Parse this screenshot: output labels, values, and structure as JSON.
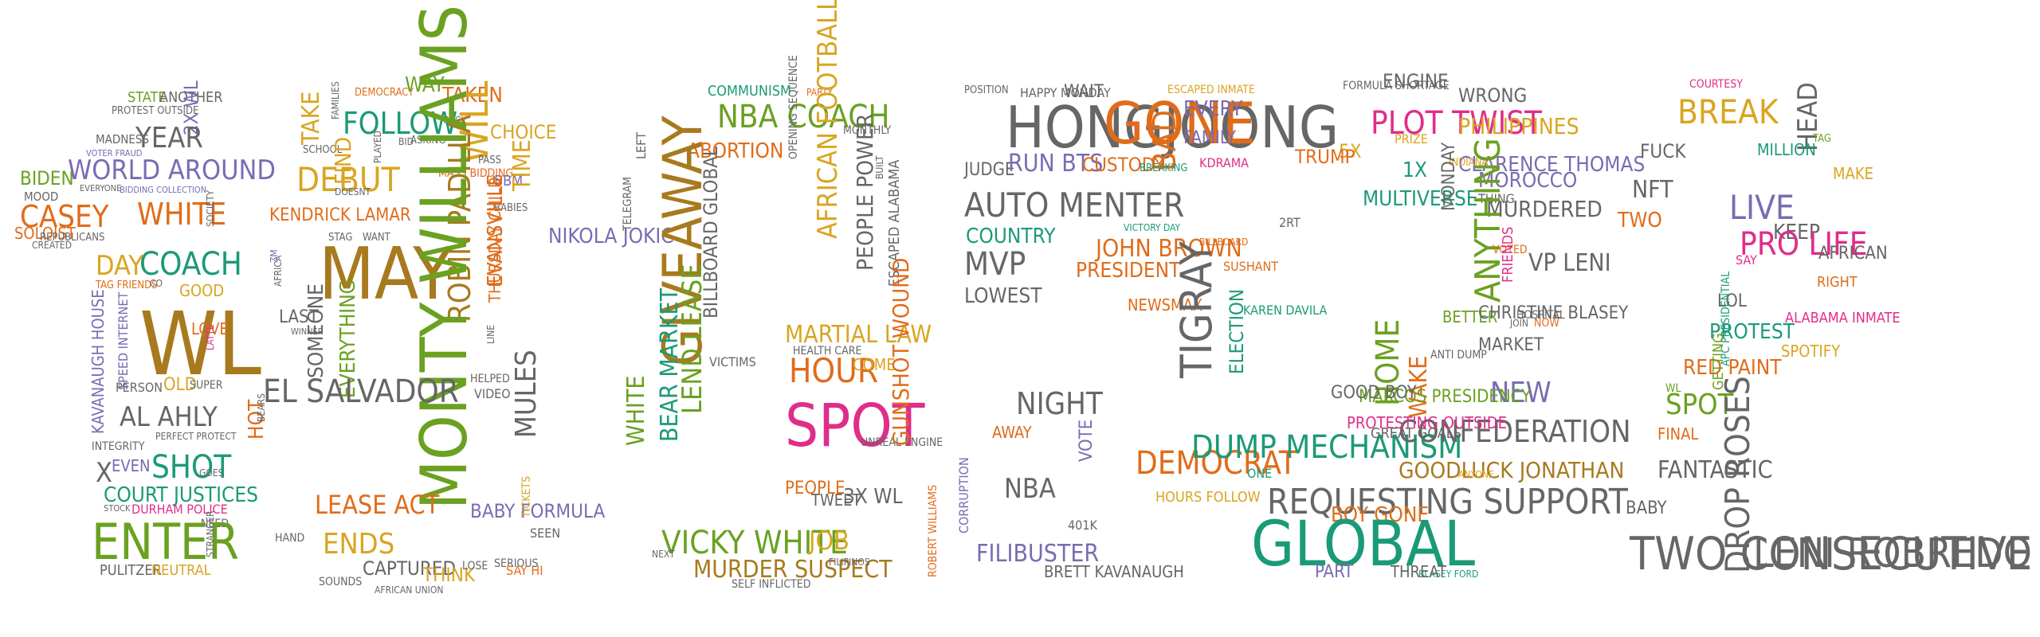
{
  "palette": {
    "green": "#6aa121",
    "orange": "#e06c1a",
    "purple": "#7a6bb3",
    "gold": "#d9a521",
    "teal": "#1b9a77",
    "gray": "#666666",
    "pink": "#e02d8a",
    "brown": "#a87a1e"
  },
  "words": [
    {
      "text": "STATE",
      "color": "#6aa121"
    },
    {
      "text": "ANOTHER",
      "color": "#666666"
    },
    {
      "text": "PROTEST OUTSIDE",
      "color": "#666666"
    },
    {
      "text": "2X WL",
      "color": "#7a6bb3"
    },
    {
      "text": "MADNESS",
      "color": "#666666"
    },
    {
      "text": "YEAR",
      "color": "#666666"
    },
    {
      "text": "VOTER FRAUD",
      "color": "#7a6bb3"
    },
    {
      "text": "WORLD AROUND",
      "color": "#7a6bb3"
    },
    {
      "text": "BIDEN",
      "color": "#6aa121"
    },
    {
      "text": "EVERYONE",
      "color": "#666666"
    },
    {
      "text": "BIDDING COLLECTION",
      "color": "#7a6bb3"
    },
    {
      "text": "MOOD",
      "color": "#666666"
    },
    {
      "text": "CASEY",
      "color": "#e06c1a"
    },
    {
      "text": "WHITE",
      "color": "#e06c1a"
    },
    {
      "text": "SOLOIST",
      "color": "#e06c1a"
    },
    {
      "text": "CREATED",
      "color": "#666666"
    },
    {
      "text": "REPUBLICANS",
      "color": "#666666"
    },
    {
      "text": "SOCIETY",
      "color": "#666666"
    },
    {
      "text": "COACH",
      "color": "#1b9a77"
    },
    {
      "text": "DAY",
      "color": "#d9a521"
    },
    {
      "text": "TAG FRIENDS",
      "color": "#e06c1a"
    },
    {
      "text": "CO",
      "color": "#666666"
    },
    {
      "text": "GOOD",
      "color": "#d9a521"
    },
    {
      "text": "WL",
      "color": "#a87a1e"
    },
    {
      "text": "KAVANAUGH HOUSE",
      "color": "#7a6bb3"
    },
    {
      "text": "SPEED INTERNET",
      "color": "#7a6bb3"
    },
    {
      "text": "LOVE",
      "color": "#e06c1a"
    },
    {
      "text": "LATTE",
      "color": "#e02d8a"
    },
    {
      "text": "PERSON",
      "color": "#666666"
    },
    {
      "text": "OLD",
      "color": "#d9a521"
    },
    {
      "text": "SUPER",
      "color": "#666666"
    },
    {
      "text": "AL AHLY",
      "color": "#666666"
    },
    {
      "text": "PERFECT PROTECT",
      "color": "#666666"
    },
    {
      "text": "INTEGRITY",
      "color": "#666666"
    },
    {
      "text": "X",
      "color": "#666666"
    },
    {
      "text": "EVEN",
      "color": "#7a6bb3"
    },
    {
      "text": "SHOT",
      "color": "#1b9a77"
    },
    {
      "text": "GOES",
      "color": "#666666"
    },
    {
      "text": "COURT JUSTICES",
      "color": "#1b9a77"
    },
    {
      "text": "STOCK",
      "color": "#666666"
    },
    {
      "text": "DURHAM POLICE",
      "color": "#e02d8a"
    },
    {
      "text": "NEED",
      "color": "#666666"
    },
    {
      "text": "ENTER",
      "color": "#6aa121"
    },
    {
      "text": "STRANGER",
      "color": "#666666"
    },
    {
      "text": "PULITZER",
      "color": "#666666"
    },
    {
      "text": "NEUTRAL",
      "color": "#d9a521"
    },
    {
      "text": "DEMOCRACY",
      "color": "#e06c1a"
    },
    {
      "text": "WAY",
      "color": "#6aa121"
    },
    {
      "text": "TAKEN",
      "color": "#e06c1a"
    },
    {
      "text": "TAKE",
      "color": "#d9a521"
    },
    {
      "text": "FAMILIES",
      "color": "#666666"
    },
    {
      "text": "FOLLOW",
      "color": "#1b9a77"
    },
    {
      "text": "TRACK",
      "color": "#666666"
    },
    {
      "text": "ASKING",
      "color": "#666666"
    },
    {
      "text": "WILL",
      "color": "#d9a521"
    },
    {
      "text": "BID",
      "color": "#666666"
    },
    {
      "text": "CHOICE",
      "color": "#d9a521"
    },
    {
      "text": "SCHOOL",
      "color": "#666666"
    },
    {
      "text": "FIND",
      "color": "#d9a521"
    },
    {
      "text": "PLAYED",
      "color": "#666666"
    },
    {
      "text": "MASS BIDDING",
      "color": "#e06c1a"
    },
    {
      "text": "PASS",
      "color": "#666666"
    },
    {
      "text": "BBM",
      "color": "#7a6bb3"
    },
    {
      "text": "TIME",
      "color": "#d9a521"
    },
    {
      "text": "DEBUT",
      "color": "#d9a521"
    },
    {
      "text": "DOESNT",
      "color": "#666666"
    },
    {
      "text": "BABIES",
      "color": "#666666"
    },
    {
      "text": "KENDRICK LAMAR",
      "color": "#e06c1a"
    },
    {
      "text": "MAY",
      "color": "#a87a1e"
    },
    {
      "text": "STAG",
      "color": "#666666"
    },
    {
      "text": "WANT",
      "color": "#666666"
    },
    {
      "text": "ROBIN PADILLA",
      "color": "#a87a1e"
    },
    {
      "text": "EVANSVILLE",
      "color": "#e06c1a"
    },
    {
      "text": "THURSDAY CHILD",
      "color": "#e06c1a"
    },
    {
      "text": "NIKOLA JOKIC",
      "color": "#7a6bb3"
    },
    {
      "text": "ZM",
      "color": "#7a6bb3"
    },
    {
      "text": "AFRICA",
      "color": "#666666"
    },
    {
      "text": "LAST",
      "color": "#666666"
    },
    {
      "text": "WINNER",
      "color": "#666666"
    },
    {
      "text": "SOMEONE",
      "color": "#666666"
    },
    {
      "text": "EVERYTHING",
      "color": "#6aa121"
    },
    {
      "text": "MONTY WILLIAMS",
      "color": "#6aa121"
    },
    {
      "text": "MULES",
      "color": "#666666"
    },
    {
      "text": "EL SALVADOR",
      "color": "#666666"
    },
    {
      "text": "HOT",
      "color": "#e06c1a"
    },
    {
      "text": "LEASE ACT",
      "color": "#e06c1a"
    },
    {
      "text": "ENDS",
      "color": "#d9a521"
    },
    {
      "text": "BABY FORMULA",
      "color": "#7a6bb3"
    },
    {
      "text": "TICKETS",
      "color": "#d9a521"
    },
    {
      "text": "SEEN",
      "color": "#666666"
    },
    {
      "text": "CAPTURED",
      "color": "#666666"
    },
    {
      "text": "THINK",
      "color": "#d9a521"
    },
    {
      "text": "LOSE",
      "color": "#666666"
    },
    {
      "text": "SERIOUS",
      "color": "#666666"
    },
    {
      "text": "SAY HI",
      "color": "#e06c1a"
    },
    {
      "text": "SOUNDS",
      "color": "#666666"
    },
    {
      "text": "AFRICAN UNION",
      "color": "#666666"
    },
    {
      "text": "VIDEO",
      "color": "#666666"
    },
    {
      "text": "HELPED",
      "color": "#666666"
    },
    {
      "text": "HAND",
      "color": "#666666"
    },
    {
      "text": "BEARS",
      "color": "#666666"
    },
    {
      "text": "LINE",
      "color": "#666666"
    },
    {
      "text": "COMMUNISM",
      "color": "#1b9a77"
    },
    {
      "text": "PARTY",
      "color": "#e06c1a"
    },
    {
      "text": "NBA COACH",
      "color": "#6aa121"
    },
    {
      "text": "ABORTION",
      "color": "#e06c1a"
    },
    {
      "text": "OPENING SEQUENCE",
      "color": "#666666"
    },
    {
      "text": "MONTHLY",
      "color": "#666666"
    },
    {
      "text": "BUILT",
      "color": "#666666"
    },
    {
      "text": "AFRICAN FOOTBALL",
      "color": "#d9a521"
    },
    {
      "text": "PEOPLE POWER",
      "color": "#666666"
    },
    {
      "text": "ESCAPED ALABAMA",
      "color": "#666666"
    },
    {
      "text": "GIVEAWAY",
      "color": "#a87a1e"
    },
    {
      "text": "BILLBOARD GLOBAL",
      "color": "#666666"
    },
    {
      "text": "TELEGRAM",
      "color": "#666666"
    },
    {
      "text": "LEFT",
      "color": "#666666"
    },
    {
      "text": "MARTIAL LAW",
      "color": "#d9a521"
    },
    {
      "text": "HEALTH CARE",
      "color": "#666666"
    },
    {
      "text": "HOUR",
      "color": "#e06c1a"
    },
    {
      "text": "COME",
      "color": "#d9a521"
    },
    {
      "text": "SPOT",
      "color": "#e02d8a"
    },
    {
      "text": "UNREAL ENGINE",
      "color": "#666666"
    },
    {
      "text": "PEOPLE",
      "color": "#e06c1a"
    },
    {
      "text": "TWEET",
      "color": "#666666"
    },
    {
      "text": "3X WL",
      "color": "#666666"
    },
    {
      "text": "WHITE",
      "color": "#6aa121"
    },
    {
      "text": "LEND LEASE",
      "color": "#6aa121"
    },
    {
      "text": "BEAR MARKET",
      "color": "#1b9a77"
    },
    {
      "text": "VICTIMS",
      "color": "#666666"
    },
    {
      "text": "VICKY WHITE",
      "color": "#6aa121"
    },
    {
      "text": "JOB",
      "color": "#d9a521"
    },
    {
      "text": "MURDER SUSPECT",
      "color": "#a87a1e"
    },
    {
      "text": "SELF INFLICTED",
      "color": "#666666"
    },
    {
      "text": "FILIPINOS",
      "color": "#666666"
    },
    {
      "text": "GUNSHOT WOUND",
      "color": "#e06c1a"
    },
    {
      "text": "NEXT",
      "color": "#666666"
    },
    {
      "text": "POSITION",
      "color": "#666666"
    },
    {
      "text": "HAPPY MONDAY",
      "color": "#666666"
    },
    {
      "text": "WAIT",
      "color": "#666666"
    },
    {
      "text": "ESCAPED INMATE",
      "color": "#d9a521"
    },
    {
      "text": "HONGJOONG",
      "color": "#666666"
    },
    {
      "text": "GONE",
      "color": "#e06c1a"
    },
    {
      "text": "BAD",
      "color": "#e06c1a"
    },
    {
      "text": "EVERY",
      "color": "#7a6bb3"
    },
    {
      "text": "FAMILY",
      "color": "#7a6bb3"
    },
    {
      "text": "KDRAMA",
      "color": "#e02d8a"
    },
    {
      "text": "JUDGE",
      "color": "#666666"
    },
    {
      "text": "RUN BTS",
      "color": "#7a6bb3"
    },
    {
      "text": "CUSTODY",
      "color": "#e06c1a"
    },
    {
      "text": "BREAKING",
      "color": "#1b9a77"
    },
    {
      "text": "AUTO MENTER",
      "color": "#666666"
    },
    {
      "text": "COUNTRY",
      "color": "#1b9a77"
    },
    {
      "text": "JOHN BROWN",
      "color": "#e06c1a"
    },
    {
      "text": "VICTORY DAY",
      "color": "#1b9a77"
    },
    {
      "text": "BILLBOARD",
      "color": "#e06c1a"
    },
    {
      "text": "MVP",
      "color": "#666666"
    },
    {
      "text": "PRESIDENT",
      "color": "#e06c1a"
    },
    {
      "text": "SUSHANT",
      "color": "#e06c1a"
    },
    {
      "text": "LOWEST",
      "color": "#666666"
    },
    {
      "text": "NEWSMAX",
      "color": "#e06c1a"
    },
    {
      "text": "TIGRAY",
      "color": "#666666"
    },
    {
      "text": "ELECTION",
      "color": "#1b9a77"
    },
    {
      "text": "KAREN DAVILA",
      "color": "#1b9a77"
    },
    {
      "text": "NIGHT",
      "color": "#666666"
    },
    {
      "text": "AWAY",
      "color": "#e06c1a"
    },
    {
      "text": "DEMOCRAT",
      "color": "#e06c1a"
    },
    {
      "text": "DUMP MECHANISM",
      "color": "#1b9a77"
    },
    {
      "text": "ONE",
      "color": "#1b9a77"
    },
    {
      "text": "NBA",
      "color": "#666666"
    },
    {
      "text": "VOTE",
      "color": "#7a6bb3"
    },
    {
      "text": "HOURS FOLLOW",
      "color": "#d9a521"
    },
    {
      "text": "CORRUPTION",
      "color": "#7a6bb3"
    },
    {
      "text": "401K",
      "color": "#666666"
    },
    {
      "text": "FILIBUSTER",
      "color": "#7a6bb3"
    },
    {
      "text": "BRETT KAVANAUGH",
      "color": "#666666"
    },
    {
      "text": "ROBERT WILLIAMS",
      "color": "#e06c1a"
    },
    {
      "text": "FORMULA SHORTAGE",
      "color": "#666666"
    },
    {
      "text": "ENGINE",
      "color": "#666666"
    },
    {
      "text": "WRONG",
      "color": "#666666"
    },
    {
      "text": "PLOT TWIST",
      "color": "#e02d8a"
    },
    {
      "text": "PHILIPPINES",
      "color": "#d9a521"
    },
    {
      "text": "5X",
      "color": "#d9a521"
    },
    {
      "text": "PRIZE",
      "color": "#d9a521"
    },
    {
      "text": "CLARENCE THOMAS",
      "color": "#7a6bb3"
    },
    {
      "text": "TRUMP",
      "color": "#e06c1a"
    },
    {
      "text": "1X",
      "color": "#1b9a77"
    },
    {
      "text": "INDIANA",
      "color": "#d9a521"
    },
    {
      "text": "MOROCCO",
      "color": "#7a6bb3"
    },
    {
      "text": "THING",
      "color": "#666666"
    },
    {
      "text": "MULTIVERSE",
      "color": "#1b9a77"
    },
    {
      "text": "MONDAY",
      "color": "#666666"
    },
    {
      "text": "MURDERED",
      "color": "#666666"
    },
    {
      "text": "2RT",
      "color": "#666666"
    },
    {
      "text": "ANYTHING",
      "color": "#6aa121"
    },
    {
      "text": "VOTED",
      "color": "#e06c1a"
    },
    {
      "text": "FRIENDS",
      "color": "#e02d8a"
    },
    {
      "text": "VP LENI",
      "color": "#666666"
    },
    {
      "text": "HOSPITAL",
      "color": "#666666"
    },
    {
      "text": "WAKE",
      "color": "#e06c1a"
    },
    {
      "text": "JOIN",
      "color": "#666666"
    },
    {
      "text": "NOW",
      "color": "#e06c1a"
    },
    {
      "text": "BETTER",
      "color": "#6aa121"
    },
    {
      "text": "CHRISTINE BLASEY",
      "color": "#666666"
    },
    {
      "text": "MARKET",
      "color": "#666666"
    },
    {
      "text": "NEW",
      "color": "#7a6bb3"
    },
    {
      "text": "HOME",
      "color": "#6aa121"
    },
    {
      "text": "ANTI DUMP",
      "color": "#666666"
    },
    {
      "text": "MARCOS PRESIDENCY",
      "color": "#6aa121"
    },
    {
      "text": "CONFEDERATION",
      "color": "#666666"
    },
    {
      "text": "GOOD BOY",
      "color": "#666666"
    },
    {
      "text": "PROTESTING OUTSIDE",
      "color": "#e02d8a"
    },
    {
      "text": "GOODLUCK JONATHAN",
      "color": "#a87a1e"
    },
    {
      "text": "GREAT GOALS",
      "color": "#666666"
    },
    {
      "text": "ANYONE",
      "color": "#d9a521"
    },
    {
      "text": "REQUESTING SUPPORT",
      "color": "#666666"
    },
    {
      "text": "BOY GONE",
      "color": "#e06c1a"
    },
    {
      "text": "GLOBAL",
      "color": "#1b9a77"
    },
    {
      "text": "BLASEY FORD",
      "color": "#1b9a77"
    },
    {
      "text": "PART",
      "color": "#7a6bb3"
    },
    {
      "text": "THREAT",
      "color": "#666666"
    },
    {
      "text": "COURTESY",
      "color": "#e02d8a"
    },
    {
      "text": "BREAK",
      "color": "#d9a521"
    },
    {
      "text": "HEAD",
      "color": "#666666"
    },
    {
      "text": "FUCK",
      "color": "#666666"
    },
    {
      "text": "MILLION",
      "color": "#1b9a77"
    },
    {
      "text": "TAG",
      "color": "#6aa121"
    },
    {
      "text": "NFT",
      "color": "#666666"
    },
    {
      "text": "MAKE",
      "color": "#d9a521"
    },
    {
      "text": "LIVE",
      "color": "#7a6bb3"
    },
    {
      "text": "TWO",
      "color": "#e06c1a"
    },
    {
      "text": "KEEP",
      "color": "#666666"
    },
    {
      "text": "PRO LIFE",
      "color": "#e02d8a"
    },
    {
      "text": "AFRICAN",
      "color": "#666666"
    },
    {
      "text": "SAY",
      "color": "#e02d8a"
    },
    {
      "text": "RIGHT",
      "color": "#e06c1a"
    },
    {
      "text": "LOL",
      "color": "#666666"
    },
    {
      "text": "ALABAMA INMATE",
      "color": "#e02d8a"
    },
    {
      "text": "PROTEST",
      "color": "#1b9a77"
    },
    {
      "text": "APC PRESIDENTIAL",
      "color": "#1b9a77"
    },
    {
      "text": "SPOTIFY",
      "color": "#d9a521"
    },
    {
      "text": "RED PAINT",
      "color": "#e06c1a"
    },
    {
      "text": "GETTING",
      "color": "#6aa121"
    },
    {
      "text": "WL",
      "color": "#6aa121"
    },
    {
      "text": "SPOT",
      "color": "#6aa121"
    },
    {
      "text": "FINAL",
      "color": "#e06c1a"
    },
    {
      "text": "FANTASTIC",
      "color": "#666666"
    },
    {
      "text": "BABY",
      "color": "#666666"
    },
    {
      "text": "DROP ROSES",
      "color": "#666666"
    },
    {
      "text": "TWO CONSECUTIVE",
      "color": "#666666"
    },
    {
      "text": "LENI ROBREDO",
      "color": "#666666"
    }
  ]
}
